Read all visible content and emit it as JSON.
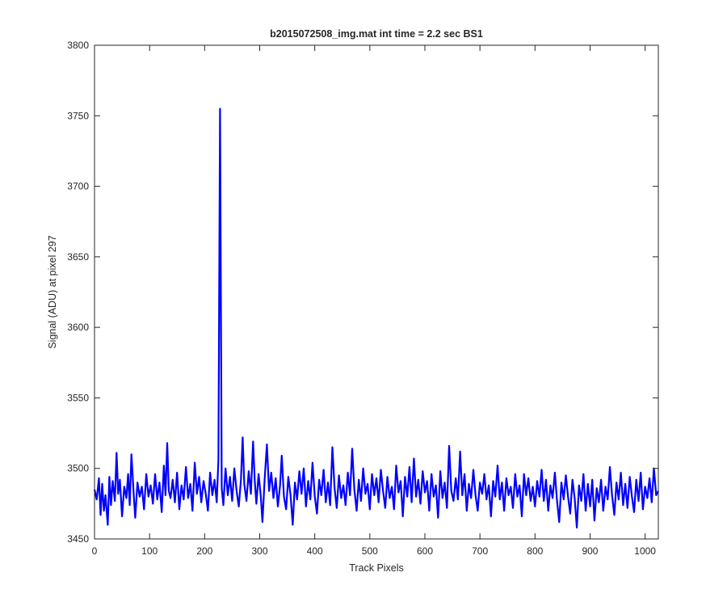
{
  "chart_data": {
    "type": "line",
    "title": "b2015072508_img.mat int time = 2.2 sec   BS1",
    "xlabel": "Track Pixels",
    "ylabel": "Signal (ADU) at pixel 297",
    "xlim": [
      0,
      1024
    ],
    "ylim": [
      3450,
      3800
    ],
    "xticks": [
      "0",
      "100",
      "200",
      "300",
      "400",
      "500",
      "600",
      "700",
      "800",
      "900",
      "1000"
    ],
    "yticks": [
      "3450",
      "3500",
      "3550",
      "3600",
      "3650",
      "3700",
      "3750",
      "3800"
    ],
    "grid": false,
    "legend": "none",
    "series": [
      {
        "color": "#0000ff",
        "spike": {
          "x": 228,
          "y": 3755
        },
        "baseline": 3486,
        "noise_range": [
          3458,
          3522
        ],
        "points": [
          [
            0,
            3485
          ],
          [
            4,
            3478
          ],
          [
            8,
            3493
          ],
          [
            11,
            3467
          ],
          [
            14,
            3489
          ],
          [
            17,
            3470
          ],
          [
            20,
            3481
          ],
          [
            24,
            3460
          ],
          [
            27,
            3494
          ],
          [
            30,
            3474
          ],
          [
            33,
            3491
          ],
          [
            37,
            3477
          ],
          [
            40,
            3511
          ],
          [
            43,
            3482
          ],
          [
            46,
            3492
          ],
          [
            50,
            3466
          ],
          [
            54,
            3487
          ],
          [
            58,
            3479
          ],
          [
            61,
            3496
          ],
          [
            64,
            3474
          ],
          [
            67,
            3510
          ],
          [
            71,
            3483
          ],
          [
            74,
            3465
          ],
          [
            78,
            3490
          ],
          [
            82,
            3480
          ],
          [
            86,
            3487
          ],
          [
            90,
            3471
          ],
          [
            94,
            3496
          ],
          [
            98,
            3480
          ],
          [
            102,
            3488
          ],
          [
            106,
            3475
          ],
          [
            110,
            3496
          ],
          [
            114,
            3478
          ],
          [
            118,
            3490
          ],
          [
            122,
            3469
          ],
          [
            126,
            3502
          ],
          [
            129,
            3481
          ],
          [
            132,
            3518
          ],
          [
            135,
            3484
          ],
          [
            138,
            3479
          ],
          [
            142,
            3492
          ],
          [
            146,
            3476
          ],
          [
            150,
            3497
          ],
          [
            154,
            3471
          ],
          [
            158,
            3488
          ],
          [
            162,
            3478
          ],
          [
            166,
            3501
          ],
          [
            170,
            3479
          ],
          [
            174,
            3489
          ],
          [
            178,
            3470
          ],
          [
            182,
            3504
          ],
          [
            186,
            3482
          ],
          [
            190,
            3494
          ],
          [
            194,
            3476
          ],
          [
            198,
            3491
          ],
          [
            202,
            3482
          ],
          [
            206,
            3470
          ],
          [
            210,
            3497
          ],
          [
            214,
            3481
          ],
          [
            218,
            3492
          ],
          [
            222,
            3476
          ],
          [
            225,
            3506
          ],
          [
            228,
            3755
          ],
          [
            231,
            3486
          ],
          [
            234,
            3474
          ],
          [
            238,
            3500
          ],
          [
            242,
            3481
          ],
          [
            246,
            3494
          ],
          [
            250,
            3477
          ],
          [
            254,
            3500
          ],
          [
            258,
            3484
          ],
          [
            262,
            3473
          ],
          [
            266,
            3492
          ],
          [
            269,
            3522
          ],
          [
            272,
            3489
          ],
          [
            276,
            3477
          ],
          [
            280,
            3498
          ],
          [
            284,
            3482
          ],
          [
            288,
            3519
          ],
          [
            291,
            3491
          ],
          [
            294,
            3475
          ],
          [
            298,
            3496
          ],
          [
            302,
            3480
          ],
          [
            305,
            3462
          ],
          [
            309,
            3492
          ],
          [
            313,
            3517
          ],
          [
            317,
            3484
          ],
          [
            321,
            3497
          ],
          [
            325,
            3479
          ],
          [
            329,
            3493
          ],
          [
            333,
            3473
          ],
          [
            337,
            3488
          ],
          [
            340,
            3509
          ],
          [
            344,
            3480
          ],
          [
            348,
            3471
          ],
          [
            352,
            3494
          ],
          [
            356,
            3481
          ],
          [
            360,
            3460
          ],
          [
            364,
            3490
          ],
          [
            368,
            3478
          ],
          [
            372,
            3498
          ],
          [
            376,
            3482
          ],
          [
            380,
            3500
          ],
          [
            384,
            3473
          ],
          [
            388,
            3491
          ],
          [
            392,
            3478
          ],
          [
            396,
            3504
          ],
          [
            400,
            3480
          ],
          [
            404,
            3468
          ],
          [
            408,
            3492
          ],
          [
            412,
            3481
          ],
          [
            416,
            3499
          ],
          [
            420,
            3476
          ],
          [
            424,
            3490
          ],
          [
            428,
            3474
          ],
          [
            432,
            3515
          ],
          [
            436,
            3486
          ],
          [
            440,
            3472
          ],
          [
            444,
            3495
          ],
          [
            448,
            3479
          ],
          [
            452,
            3488
          ],
          [
            456,
            3474
          ],
          [
            460,
            3497
          ],
          [
            464,
            3481
          ],
          [
            468,
            3514
          ],
          [
            472,
            3485
          ],
          [
            476,
            3470
          ],
          [
            480,
            3492
          ],
          [
            484,
            3477
          ],
          [
            488,
            3500
          ],
          [
            492,
            3482
          ],
          [
            496,
            3489
          ],
          [
            500,
            3471
          ],
          [
            504,
            3496
          ],
          [
            508,
            3481
          ],
          [
            512,
            3493
          ],
          [
            516,
            3476
          ],
          [
            520,
            3499
          ],
          [
            524,
            3484
          ],
          [
            528,
            3472
          ],
          [
            532,
            3494
          ],
          [
            536,
            3479
          ],
          [
            540,
            3487
          ],
          [
            544,
            3471
          ],
          [
            548,
            3502
          ],
          [
            552,
            3483
          ],
          [
            556,
            3491
          ],
          [
            560,
            3466
          ],
          [
            564,
            3494
          ],
          [
            568,
            3480
          ],
          [
            572,
            3501
          ],
          [
            576,
            3476
          ],
          [
            580,
            3507
          ],
          [
            584,
            3480
          ],
          [
            588,
            3492
          ],
          [
            592,
            3475
          ],
          [
            596,
            3498
          ],
          [
            600,
            3483
          ],
          [
            604,
            3491
          ],
          [
            608,
            3470
          ],
          [
            612,
            3496
          ],
          [
            616,
            3480
          ],
          [
            620,
            3488
          ],
          [
            624,
            3465
          ],
          [
            628,
            3498
          ],
          [
            632,
            3479
          ],
          [
            636,
            3490
          ],
          [
            640,
            3472
          ],
          [
            644,
            3516
          ],
          [
            648,
            3484
          ],
          [
            652,
            3477
          ],
          [
            656,
            3493
          ],
          [
            660,
            3478
          ],
          [
            664,
            3512
          ],
          [
            668,
            3481
          ],
          [
            672,
            3496
          ],
          [
            676,
            3470
          ],
          [
            680,
            3489
          ],
          [
            684,
            3479
          ],
          [
            688,
            3499
          ],
          [
            692,
            3481
          ],
          [
            696,
            3470
          ],
          [
            700,
            3490
          ],
          [
            704,
            3482
          ],
          [
            708,
            3496
          ],
          [
            712,
            3478
          ],
          [
            716,
            3488
          ],
          [
            720,
            3466
          ],
          [
            724,
            3491
          ],
          [
            728,
            3480
          ],
          [
            732,
            3502
          ],
          [
            736,
            3478
          ],
          [
            740,
            3490
          ],
          [
            744,
            3470
          ],
          [
            748,
            3493
          ],
          [
            752,
            3481
          ],
          [
            756,
            3487
          ],
          [
            760,
            3472
          ],
          [
            764,
            3496
          ],
          [
            768,
            3480
          ],
          [
            772,
            3488
          ],
          [
            776,
            3466
          ],
          [
            780,
            3496
          ],
          [
            784,
            3481
          ],
          [
            788,
            3493
          ],
          [
            792,
            3477
          ],
          [
            796,
            3487
          ],
          [
            800,
            3473
          ],
          [
            804,
            3491
          ],
          [
            808,
            3480
          ],
          [
            812,
            3499
          ],
          [
            816,
            3477
          ],
          [
            820,
            3492
          ],
          [
            824,
            3470
          ],
          [
            828,
            3488
          ],
          [
            832,
            3479
          ],
          [
            836,
            3497
          ],
          [
            840,
            3477
          ],
          [
            844,
            3462
          ],
          [
            848,
            3490
          ],
          [
            852,
            3478
          ],
          [
            856,
            3495
          ],
          [
            860,
            3480
          ],
          [
            864,
            3468
          ],
          [
            868,
            3492
          ],
          [
            872,
            3479
          ],
          [
            876,
            3458
          ],
          [
            880,
            3488
          ],
          [
            884,
            3477
          ],
          [
            888,
            3496
          ],
          [
            892,
            3470
          ],
          [
            896,
            3489
          ],
          [
            900,
            3473
          ],
          [
            904,
            3492
          ],
          [
            908,
            3463
          ],
          [
            912,
            3486
          ],
          [
            916,
            3476
          ],
          [
            920,
            3492
          ],
          [
            924,
            3470
          ],
          [
            928,
            3487
          ],
          [
            932,
            3478
          ],
          [
            936,
            3501
          ],
          [
            940,
            3481
          ],
          [
            944,
            3467
          ],
          [
            948,
            3490
          ],
          [
            952,
            3478
          ],
          [
            956,
            3497
          ],
          [
            960,
            3474
          ],
          [
            964,
            3489
          ],
          [
            968,
            3472
          ],
          [
            972,
            3494
          ],
          [
            976,
            3480
          ],
          [
            980,
            3469
          ],
          [
            984,
            3492
          ],
          [
            988,
            3477
          ],
          [
            992,
            3497
          ],
          [
            996,
            3471
          ],
          [
            1000,
            3487
          ],
          [
            1004,
            3479
          ],
          [
            1008,
            3493
          ],
          [
            1012,
            3476
          ],
          [
            1016,
            3500
          ],
          [
            1020,
            3481
          ],
          [
            1024,
            3484
          ]
        ]
      }
    ]
  }
}
